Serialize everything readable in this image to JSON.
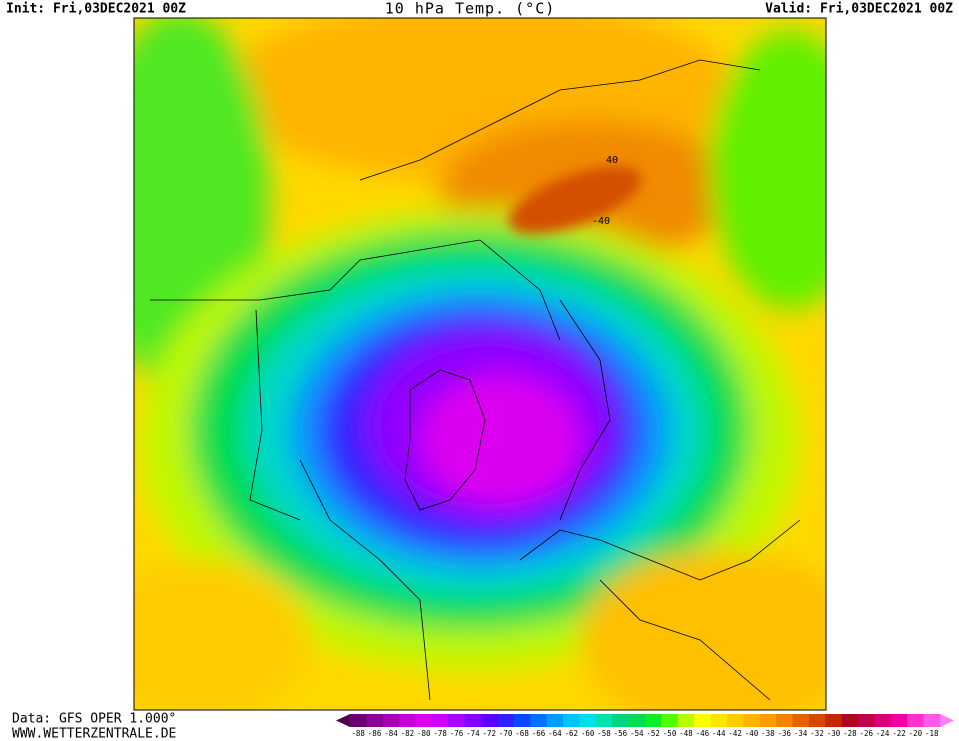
{
  "header": {
    "init": "Init: Fri,03DEC2021 00Z",
    "title": "10 hPa Temp. (°C)",
    "valid": "Valid: Fri,03DEC2021 00Z"
  },
  "map": {
    "contour_labels": [
      "40",
      "-40"
    ]
  },
  "footer": {
    "data": "Data: GFS OPER 1.000°",
    "site": "WWW.WETTERZENTRALE.DE"
  },
  "colorbar": {
    "labels": [
      -88,
      -86,
      -84,
      -82,
      -80,
      -78,
      -76,
      -74,
      -72,
      -70,
      -68,
      -66,
      -64,
      -62,
      -60,
      -58,
      -56,
      -54,
      -52,
      -50,
      -48,
      -46,
      -44,
      -42,
      -40,
      -38,
      -36,
      -34,
      -32,
      -30,
      -28,
      -26,
      -24,
      -22,
      -20,
      -18
    ],
    "colors": [
      "#6a0070",
      "#8a0098",
      "#a800b8",
      "#c400d4",
      "#dc00ec",
      "#d000ff",
      "#a800ff",
      "#8400ff",
      "#5c00ff",
      "#3020ff",
      "#0848ff",
      "#0070ff",
      "#009cff",
      "#00c4ff",
      "#00e0e8",
      "#00e0b0",
      "#00d47c",
      "#00dc50",
      "#10ec28",
      "#50ff00",
      "#b4ff00",
      "#ffff00",
      "#ffe400",
      "#ffcc00",
      "#ffb400",
      "#ff9c00",
      "#f48400",
      "#e46400",
      "#d44800",
      "#c42800",
      "#b0081c",
      "#c00048",
      "#d80078",
      "#f000a4",
      "#ff30cc",
      "#ff58ec"
    ],
    "left_color": "#500050",
    "right_color": "#ff80ff"
  }
}
